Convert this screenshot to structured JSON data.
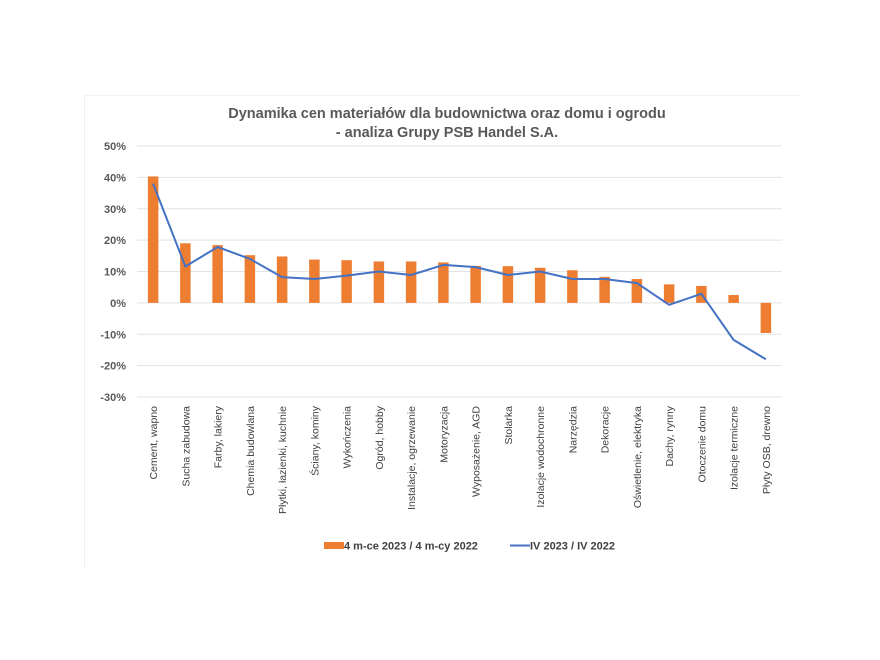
{
  "chart_data": {
    "type": "bar",
    "title": [
      "Dynamika cen materiałów dla budownictwa oraz domu i ogrodu",
      "- analiza Grupy PSB Handel S.A."
    ],
    "xlabel": "",
    "ylabel": "",
    "ylim": [
      -0.3,
      0.5
    ],
    "yticks": [
      0.5,
      0.4,
      0.3,
      0.2,
      0.1,
      0.0,
      -0.1,
      -0.2,
      -0.3
    ],
    "ytick_labels": [
      "50%",
      "40%",
      "30%",
      "20%",
      "10%",
      "0%",
      "-10%",
      "-20%",
      "-30%"
    ],
    "grid": true,
    "legend_position": "bottom",
    "categories": [
      "Cement, wapno",
      "Sucha zabudowa",
      "Farby, lakiery",
      "Chemia budowlana",
      "Płytki, łazienki, kuchnie",
      "Ściany, kominy",
      "Wykończenia",
      "Ogród, hobby",
      "Instalacje, ogrzewanie",
      "Motoryzacja",
      "Wyposażenie, AGD",
      "Stolarka",
      "Izolacje wodochronne",
      "Narzędzia",
      "Dekoracje",
      "Oświetlenie, elektryka",
      "Dachy, rynny",
      "Otoczenie domu",
      "Izolacje termiczne",
      "Płyty OSB, drewno"
    ],
    "series": [
      {
        "name": "4 m-ce 2023 / 4 m-cy 2022",
        "type": "bar",
        "color": "#ED7D31",
        "values": [
          0.403,
          0.19,
          0.184,
          0.152,
          0.148,
          0.138,
          0.136,
          0.132,
          0.132,
          0.129,
          0.118,
          0.117,
          0.112,
          0.104,
          0.083,
          0.076,
          0.059,
          0.054,
          0.025,
          -0.096
        ]
      },
      {
        "name": "IV 2023 / IV 2022",
        "type": "line",
        "color": "#4472C4",
        "values": [
          0.38,
          0.116,
          0.178,
          0.14,
          0.082,
          0.076,
          0.087,
          0.1,
          0.089,
          0.121,
          0.114,
          0.089,
          0.1,
          0.076,
          0.076,
          0.063,
          -0.006,
          0.029,
          -0.118,
          -0.18
        ]
      }
    ]
  }
}
